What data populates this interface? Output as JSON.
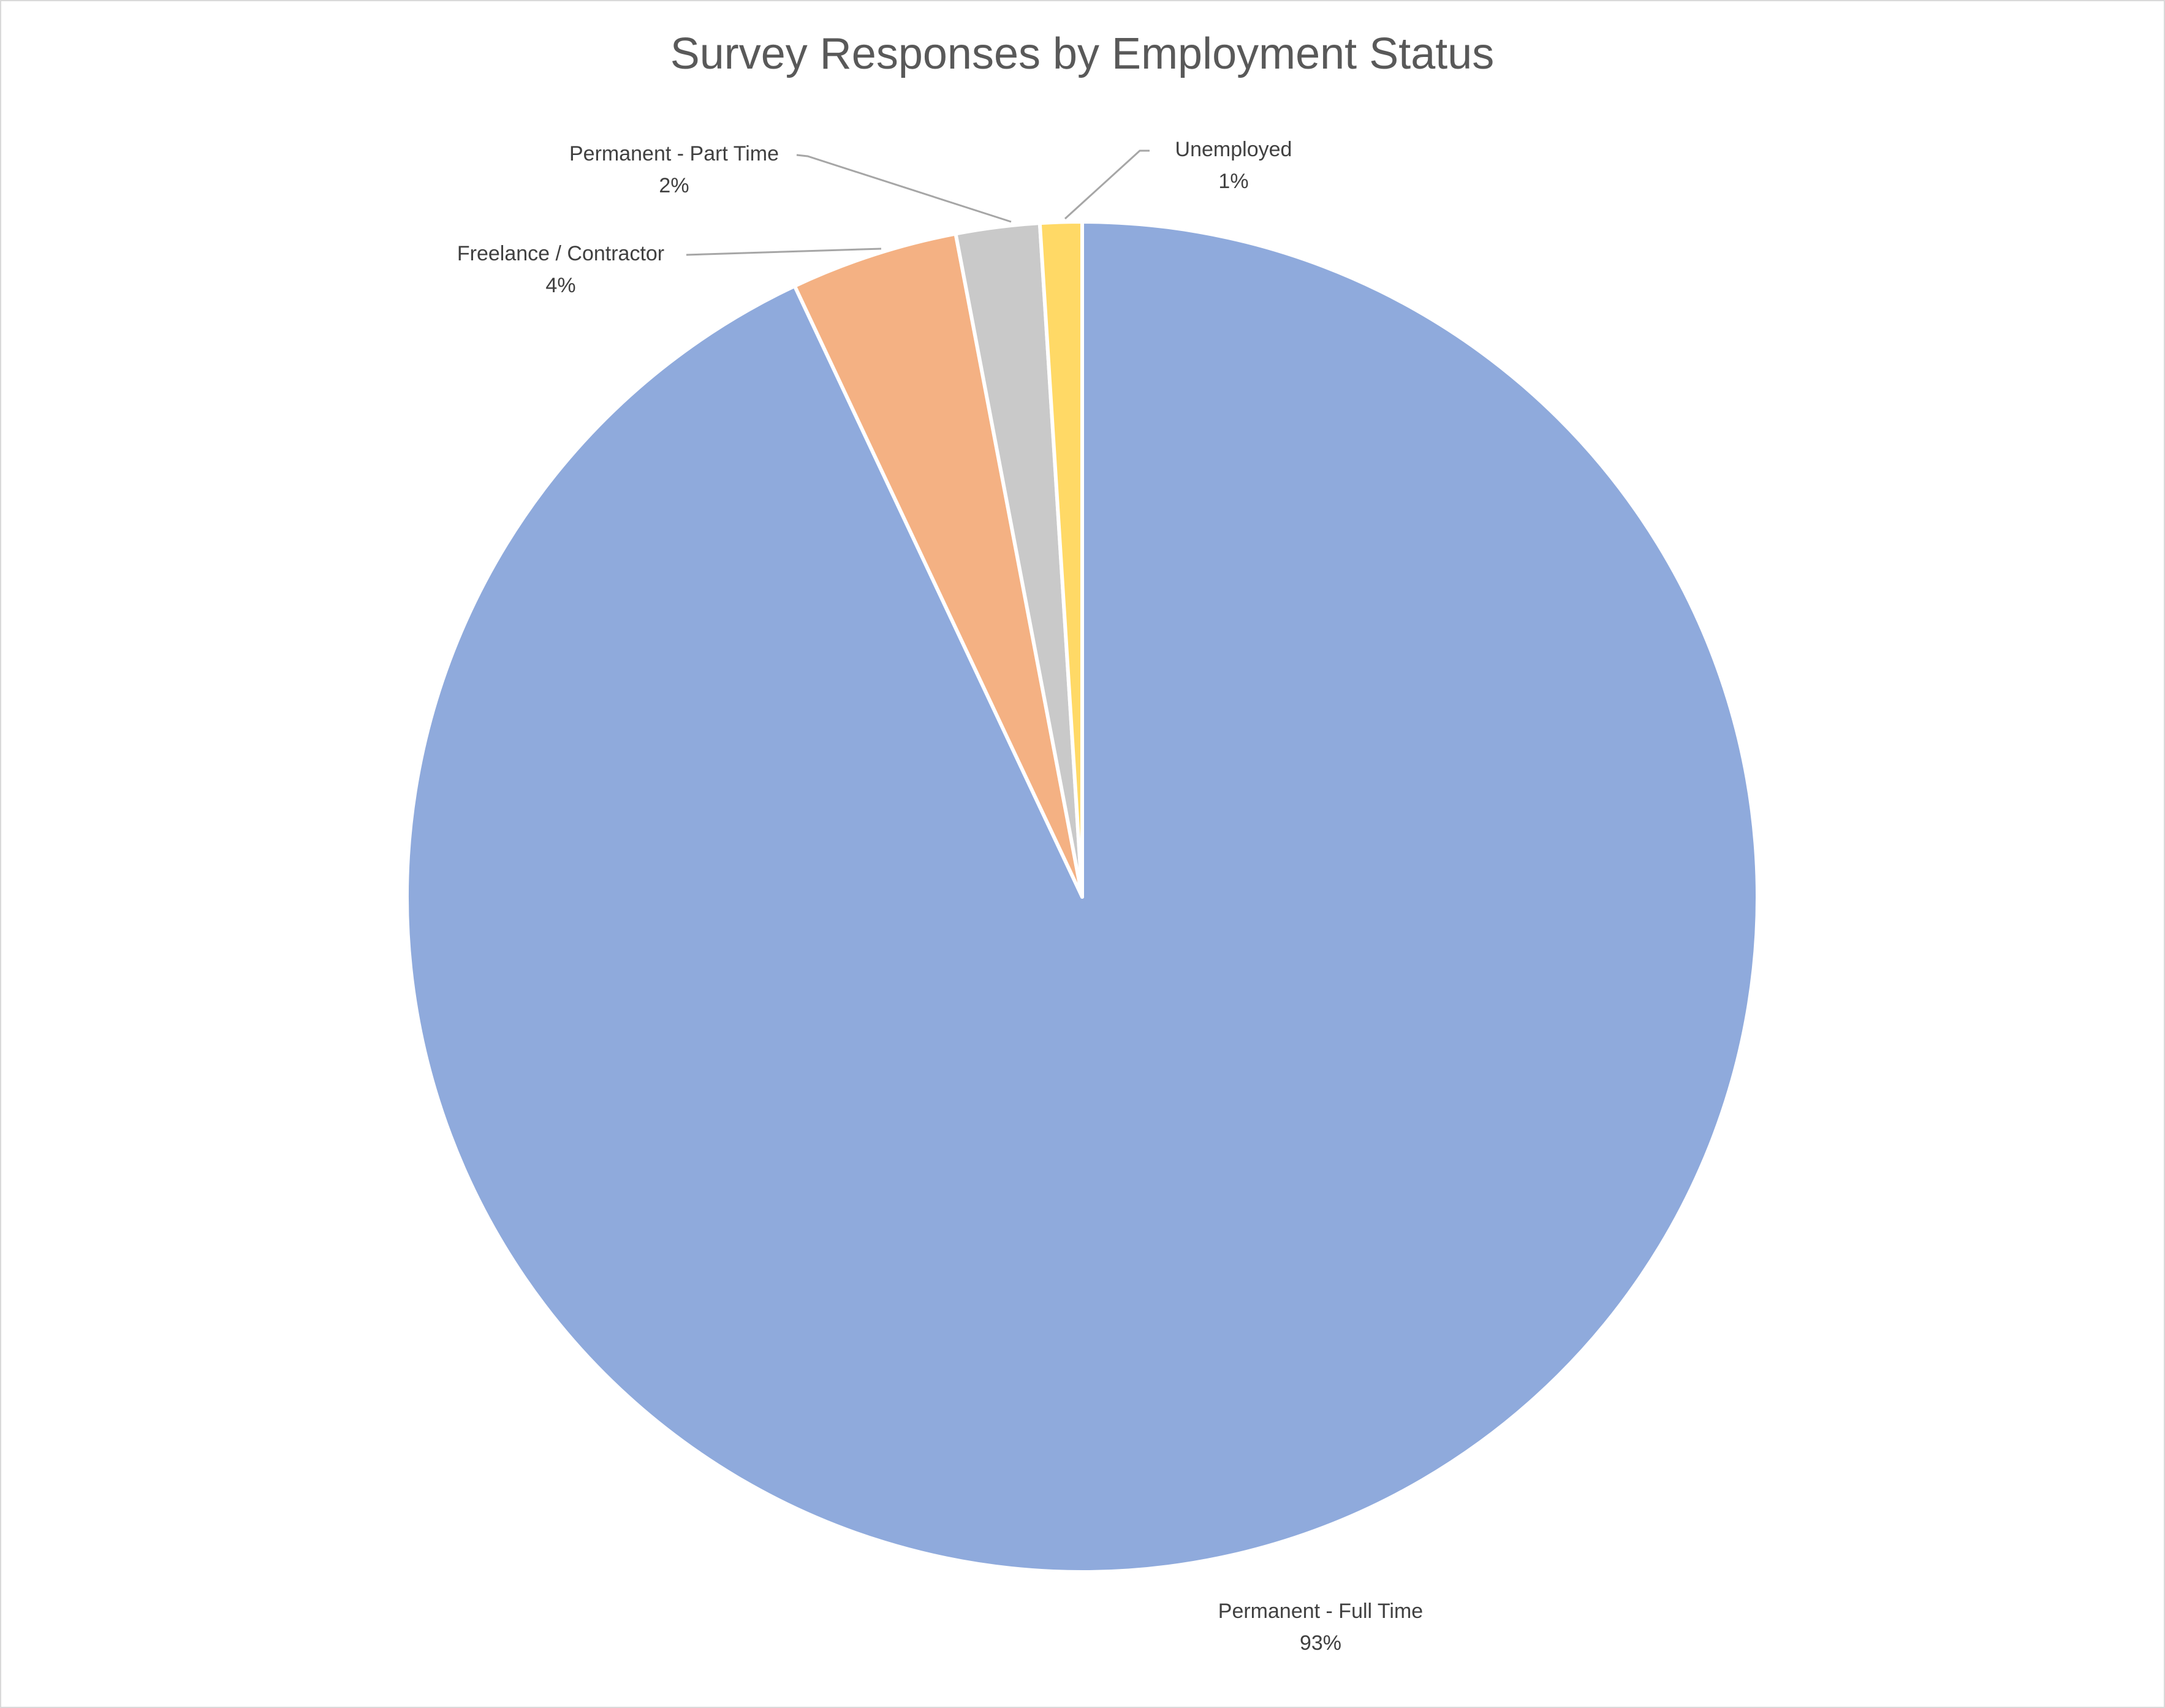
{
  "chart_data": {
    "type": "pie",
    "title": "Survey Responses by Employment Status",
    "start_angle_deg": 0,
    "direction": "clockwise",
    "slices": [
      {
        "label": "Permanent - Full Time",
        "value": 93,
        "display": "93%",
        "color": "#8FAADC"
      },
      {
        "label": "Freelance / Contractor",
        "value": 4,
        "display": "4%",
        "color": "#F4B183"
      },
      {
        "label": "Permanent - Part Time",
        "value": 2,
        "display": "2%",
        "color": "#C9C9C9"
      },
      {
        "label": "Unemployed",
        "value": 1,
        "display": "1%",
        "color": "#FFD966"
      }
    ],
    "slice_border_color": "#FFFFFF",
    "leader_line_color": "#A6A6A6",
    "legend": "none"
  }
}
